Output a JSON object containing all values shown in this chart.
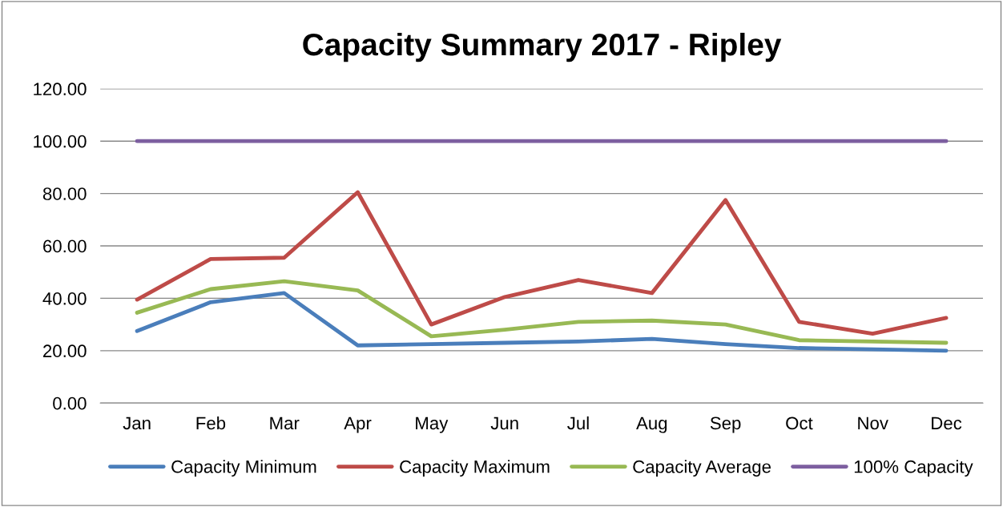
{
  "chart_data": {
    "type": "line",
    "title": "Capacity Summary 2017 - Ripley",
    "categories": [
      "Jan",
      "Feb",
      "Mar",
      "Apr",
      "May",
      "Jun",
      "Jul",
      "Aug",
      "Sep",
      "Oct",
      "Nov",
      "Dec"
    ],
    "series": [
      {
        "name": "Capacity Minimum",
        "color": "#4a7ebb",
        "values": [
          27.5,
          38.5,
          42,
          22,
          22.5,
          23,
          23.5,
          24.5,
          22.5,
          21,
          20.5,
          20
        ]
      },
      {
        "name": "Capacity Maximum",
        "color": "#be4b48",
        "values": [
          39.5,
          55,
          55.5,
          80.5,
          30,
          40.5,
          47,
          42,
          77.5,
          31,
          26.5,
          32.5
        ]
      },
      {
        "name": "Capacity Average",
        "color": "#98b954",
        "values": [
          34.5,
          43.5,
          46.5,
          43,
          25.5,
          28,
          31,
          31.5,
          30,
          24,
          23.5,
          23
        ]
      },
      {
        "name": "100% Capacity",
        "color": "#7d5fa0",
        "values": [
          100,
          100,
          100,
          100,
          100,
          100,
          100,
          100,
          100,
          100,
          100,
          100
        ]
      }
    ],
    "ylim": [
      0,
      120
    ],
    "yticks": [
      {
        "value": 0,
        "label": "0.00"
      },
      {
        "value": 20,
        "label": "20.00"
      },
      {
        "value": 40,
        "label": "40.00"
      },
      {
        "value": 60,
        "label": "60.00"
      },
      {
        "value": 80,
        "label": "80.00"
      },
      {
        "value": 100,
        "label": "100.00"
      },
      {
        "value": 120,
        "label": "120.00"
      }
    ],
    "grid": "y",
    "legend": "bottom",
    "marker": "none",
    "line_style": "solid"
  }
}
